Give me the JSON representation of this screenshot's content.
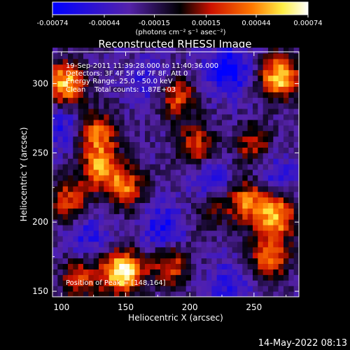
{
  "colorbar": {
    "tick_labels": [
      "-0.00074",
      "-0.00044",
      "-0.00015",
      "0.00015",
      "0.00044",
      "0.00074"
    ],
    "tick_values": [
      -0.00074,
      -0.00044,
      -0.00015,
      0.00015,
      0.00044,
      0.00074
    ],
    "range": [
      -0.00074,
      0.00074
    ],
    "unit_label": "(photons cm⁻² s⁻¹ asec⁻²)",
    "colors": [
      "#0000ff",
      "#5522aa",
      "#000000",
      "#cc1100",
      "#ff7700",
      "#ffee44",
      "#ffffff"
    ]
  },
  "chart_data": {
    "type": "heatmap",
    "title": "Reconstructed RHESSI Image",
    "xlabel": "Heliocentric X (arcsec)",
    "ylabel": "Heliocentric Y (arcsec)",
    "xlim": [
      93,
      285
    ],
    "ylim": [
      146,
      323
    ],
    "x_ticks": [
      100,
      150,
      200,
      250
    ],
    "y_ticks": [
      150,
      200,
      250,
      300
    ],
    "grid": false,
    "annotations": [
      "19-Sep-2011 11:39:28.000 to 11:40:36.000",
      "Detectors: 3F 4F 5F 6F 7F 8F, Att 0",
      "Energy Range: 25.0 - 50.0 keV",
      "Clean    Total counts: 1.87E+03"
    ],
    "peak_label": "Position of Peak = [148,164]",
    "hot_spots": [
      {
        "x": 148,
        "y": 164,
        "level": 1.0
      },
      {
        "x": 103,
        "y": 300,
        "level": 0.85
      },
      {
        "x": 128,
        "y": 265,
        "level": 0.6
      },
      {
        "x": 130,
        "y": 240,
        "level": 0.65
      },
      {
        "x": 150,
        "y": 225,
        "level": 0.6
      },
      {
        "x": 105,
        "y": 215,
        "level": 0.55
      },
      {
        "x": 190,
        "y": 290,
        "level": 0.55
      },
      {
        "x": 205,
        "y": 255,
        "level": 0.55
      },
      {
        "x": 270,
        "y": 305,
        "level": 0.85
      },
      {
        "x": 250,
        "y": 255,
        "level": 0.45
      },
      {
        "x": 245,
        "y": 215,
        "level": 0.65
      },
      {
        "x": 268,
        "y": 205,
        "level": 0.75
      },
      {
        "x": 262,
        "y": 175,
        "level": 0.65
      },
      {
        "x": 185,
        "y": 170,
        "level": 0.55
      },
      {
        "x": 115,
        "y": 160,
        "level": 0.5
      },
      {
        "x": 215,
        "y": 210,
        "level": 0.35
      }
    ],
    "cold_spots": [
      {
        "x": 230,
        "y": 310,
        "level": 1.0
      },
      {
        "x": 180,
        "y": 195,
        "level": 0.8
      },
      {
        "x": 120,
        "y": 190,
        "level": 0.6
      },
      {
        "x": 215,
        "y": 230,
        "level": 0.7
      },
      {
        "x": 100,
        "y": 270,
        "level": 0.6
      },
      {
        "x": 265,
        "y": 235,
        "level": 0.55
      },
      {
        "x": 230,
        "y": 155,
        "level": 0.6
      },
      {
        "x": 168,
        "y": 300,
        "level": 0.5
      }
    ]
  },
  "footer": {
    "date_stamp": "14-May-2022 08:13"
  }
}
